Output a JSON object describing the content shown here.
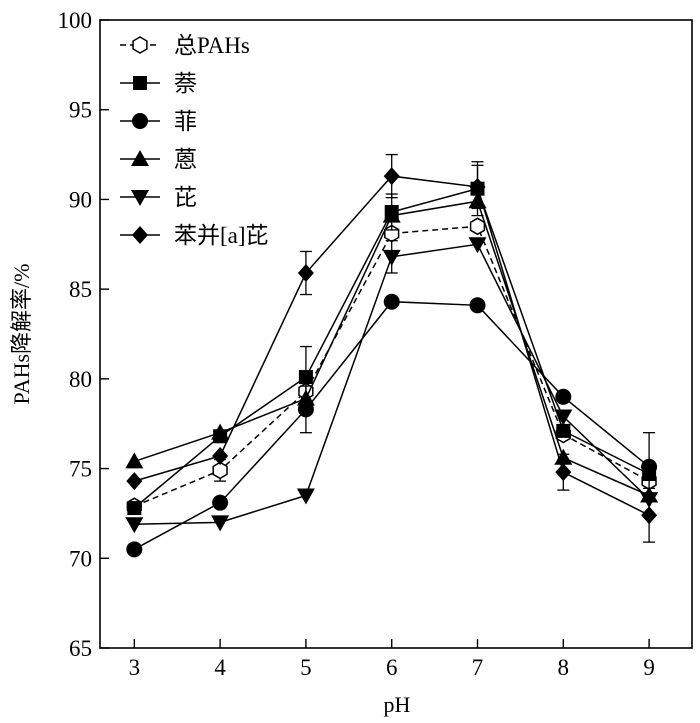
{
  "chart_data": {
    "type": "line",
    "xlabel": "pH",
    "ylabel": "PAHs降解率/%",
    "xlim": [
      2.6,
      9.5
    ],
    "ylim": [
      65,
      100
    ],
    "x": [
      3,
      4,
      5,
      6,
      7,
      8,
      9
    ],
    "xticks": [
      "3",
      "4",
      "5",
      "6",
      "7",
      "8",
      "9"
    ],
    "yticks": [
      "65",
      "70",
      "75",
      "80",
      "85",
      "90",
      "95",
      "100"
    ],
    "grid": false,
    "legend_position": "top-left",
    "series": [
      {
        "name": "总PAHs",
        "marker": "hexagon-open",
        "dashed": true,
        "values": [
          72.9,
          74.9,
          79.3,
          88.1,
          88.5,
          76.9,
          74.3
        ],
        "errors": [
          0,
          0.6,
          0,
          0,
          0,
          0,
          0
        ]
      },
      {
        "name": "萘",
        "marker": "square",
        "values": [
          72.8,
          76.8,
          80.1,
          89.3,
          90.6,
          77.1,
          74.7
        ],
        "errors": [
          0,
          0,
          1.7,
          1.0,
          1.5,
          0,
          0
        ]
      },
      {
        "name": "菲",
        "marker": "circle",
        "values": [
          70.5,
          73.1,
          78.3,
          84.3,
          84.1,
          79.0,
          75.1
        ],
        "errors": [
          0,
          0,
          1.3,
          0,
          0,
          0,
          1.9
        ]
      },
      {
        "name": "蒽",
        "marker": "triangle-up",
        "values": [
          75.4,
          77.0,
          78.9,
          89.1,
          89.9,
          75.6,
          73.5
        ],
        "errors": [
          0,
          0,
          0,
          0,
          0,
          0,
          0
        ]
      },
      {
        "name": "芘",
        "marker": "triangle-down",
        "values": [
          71.9,
          72.0,
          73.5,
          86.8,
          87.5,
          77.9,
          73.3
        ],
        "errors": [
          0,
          0,
          0,
          0.9,
          0,
          0,
          0
        ]
      },
      {
        "name": "苯并[a]芘",
        "marker": "diamond",
        "values": [
          74.3,
          75.7,
          85.9,
          91.3,
          90.7,
          74.8,
          72.4
        ],
        "errors": [
          0,
          0,
          1.2,
          1.2,
          1.2,
          1.0,
          1.5
        ]
      }
    ]
  }
}
